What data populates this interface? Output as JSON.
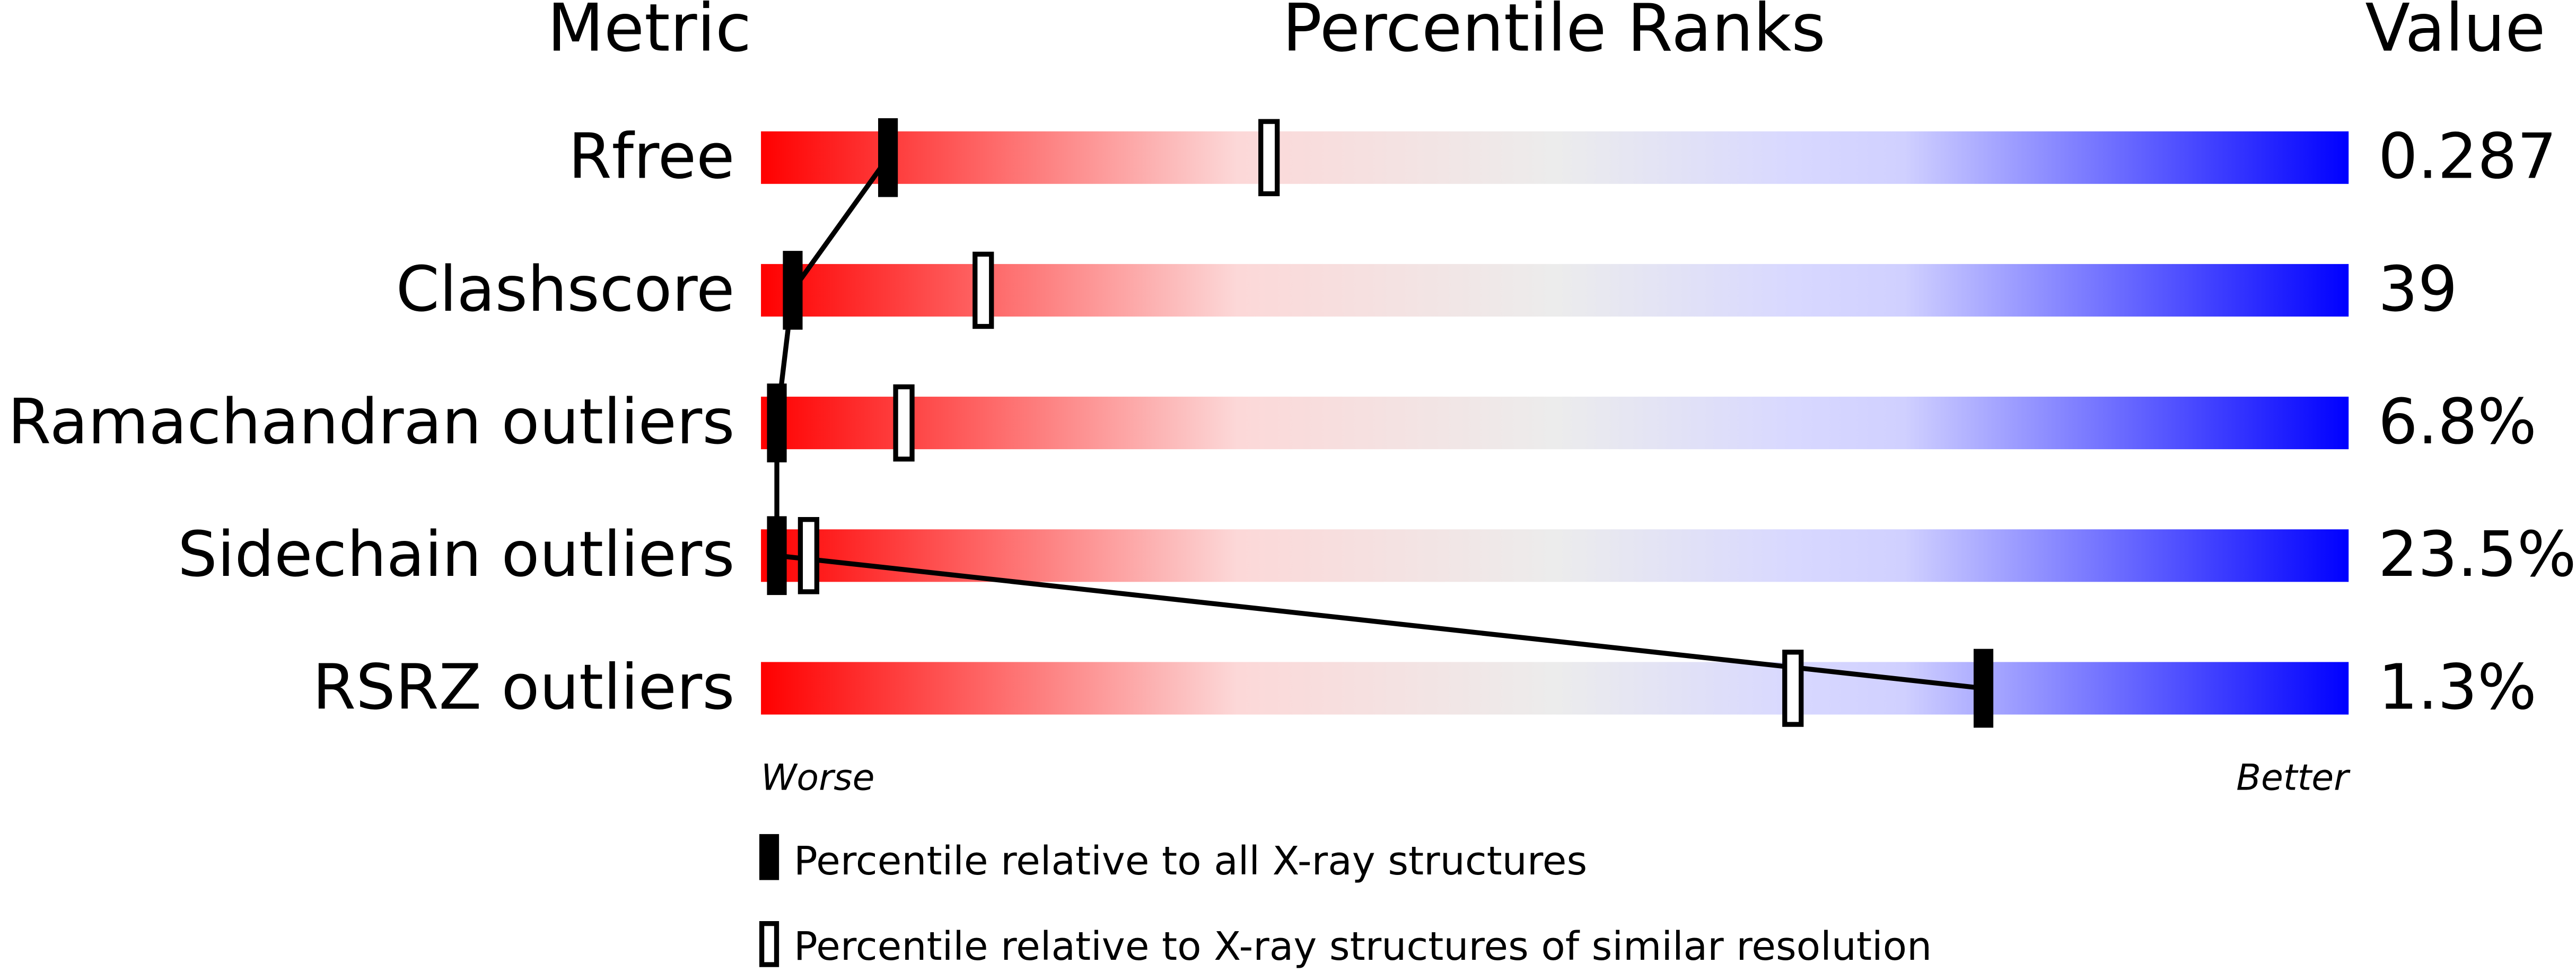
{
  "chart_data": {
    "type": "percentile",
    "headers": [
      "Metric",
      "Percentile Ranks",
      "Value"
    ],
    "categories": [
      "Rfree",
      "Clashscore",
      "Ramachandran outliers",
      "Sidechain outliers",
      "RSRZ outliers"
    ],
    "metric_values": [
      "0.287",
      "39",
      "6.8%",
      "23.5%",
      "1.3%"
    ],
    "series": [
      {
        "name": "Percentile relative to all X-ray structures",
        "color": "#000000",
        "values": [
          8,
          2,
          1,
          1,
          77
        ]
      },
      {
        "name": "Percentile relative to X-ray structures of similar resolution",
        "color": "#000000",
        "values": [
          32,
          14,
          9,
          3,
          65
        ]
      }
    ],
    "xlim": [
      0,
      100
    ],
    "axis_labels": [
      "Worse",
      "Better"
    ]
  }
}
